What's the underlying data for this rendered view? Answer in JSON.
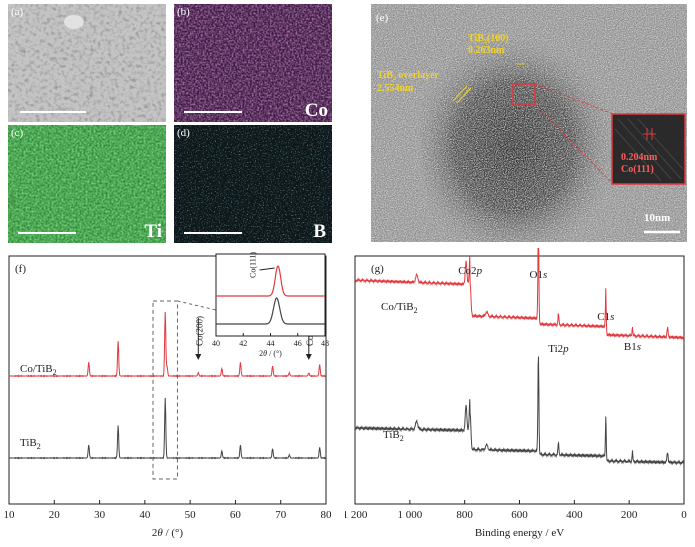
{
  "panels": {
    "a": {
      "label": "(a)"
    },
    "b": {
      "label": "(b)",
      "element": "Co"
    },
    "c": {
      "label": "(c)",
      "element": "Ti"
    },
    "d": {
      "label": "(d)",
      "element": "B"
    },
    "e": {
      "label": "(e)",
      "tib2_plane": "TiB₂(100)",
      "tib2_spacing": "0.263nm",
      "overlayer_label": "TiB₂ overlayer",
      "overlayer_thickness": "2.554nm",
      "co_spacing": "0.204nm",
      "co_plane": "Co(111)",
      "scale_bar": "10nm"
    },
    "f": {
      "label": "(f)"
    },
    "g": {
      "label": "(g)"
    }
  },
  "chart_data": [
    {
      "type": "line",
      "panel": "f",
      "xlabel": "2θ / (°)",
      "xlim": [
        10,
        80
      ],
      "x_ticks": [
        10,
        20,
        30,
        40,
        50,
        60,
        70,
        80
      ],
      "series": [
        {
          "name": "Co/TiB₂",
          "color": "#e0393e",
          "peaks": [
            [
              27.6,
              0.22
            ],
            [
              34.1,
              0.55
            ],
            [
              44.5,
              1.0
            ],
            [
              44.9,
              0.15
            ],
            [
              51.8,
              0.05
            ],
            [
              57.0,
              0.12
            ],
            [
              61.1,
              0.22
            ],
            [
              68.2,
              0.16
            ],
            [
              71.9,
              0.05
            ],
            [
              76.2,
              0.05
            ],
            [
              78.6,
              0.18
            ]
          ]
        },
        {
          "name": "TiB₂",
          "color": "#444444",
          "peaks": [
            [
              27.6,
              0.22
            ],
            [
              34.1,
              0.55
            ],
            [
              44.5,
              1.0
            ],
            [
              57.0,
              0.12
            ],
            [
              61.1,
              0.22
            ],
            [
              68.2,
              0.16
            ],
            [
              71.9,
              0.05
            ],
            [
              78.6,
              0.18
            ]
          ]
        }
      ],
      "annotations": [
        {
          "text": "Co(200)",
          "x": 51.8
        },
        {
          "text": "Co(220)",
          "x": 76.2
        }
      ],
      "inset": {
        "xlabel": "2θ / (°)",
        "xlim": [
          40,
          48
        ],
        "x_ticks": [
          40,
          42,
          44,
          46,
          48
        ],
        "annotation": "Co(111)"
      }
    },
    {
      "type": "line",
      "panel": "g",
      "xlabel": "Binding energy / eV",
      "xlim": [
        1200,
        0
      ],
      "x_ticks": [
        1200,
        1000,
        800,
        600,
        400,
        200,
        0
      ],
      "x_tick_labels": [
        "1 200",
        "1 000",
        "800",
        "600",
        "400",
        "200",
        "0"
      ],
      "series": [
        {
          "name": "Co/TiB₂",
          "color": "#e0393e"
        },
        {
          "name": "TiB₂",
          "color": "#444444"
        }
      ],
      "peak_labels": [
        {
          "text": "Co2p",
          "x": 780
        },
        {
          "text": "O1s",
          "x": 531
        },
        {
          "text": "Ti2p",
          "x": 458
        },
        {
          "text": "C1s",
          "x": 285
        },
        {
          "text": "B1s",
          "x": 188
        }
      ]
    }
  ]
}
